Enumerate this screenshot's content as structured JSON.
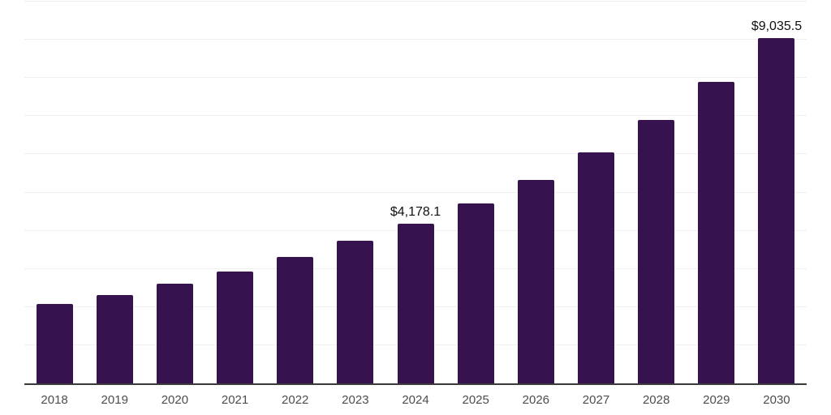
{
  "chart_data": {
    "type": "bar",
    "title": "",
    "xlabel": "",
    "ylabel": "",
    "categories": [
      "2018",
      "2019",
      "2020",
      "2021",
      "2022",
      "2023",
      "2024",
      "2025",
      "2026",
      "2027",
      "2028",
      "2029",
      "2030"
    ],
    "values": [
      2080,
      2310,
      2610,
      2930,
      3310,
      3730,
      4178.1,
      4710,
      5330,
      6050,
      6900,
      7900,
      9035.5
    ],
    "value_labels": [
      null,
      null,
      null,
      null,
      null,
      null,
      "$4,178.1",
      null,
      null,
      null,
      null,
      null,
      "$9,035.5"
    ],
    "ylim": [
      0,
      10000
    ],
    "gridline_step": 1000,
    "grid": "horizontal",
    "y_axis_labels_visible": false,
    "legend": "none"
  },
  "theme": {
    "background": "#ffffff",
    "bar_color": "#36124f",
    "axis_color": "#3c3c3c",
    "gridline_color": "#f0f0f0",
    "value_label_color": "#111111",
    "tick_label_color": "#4d4d4d"
  }
}
